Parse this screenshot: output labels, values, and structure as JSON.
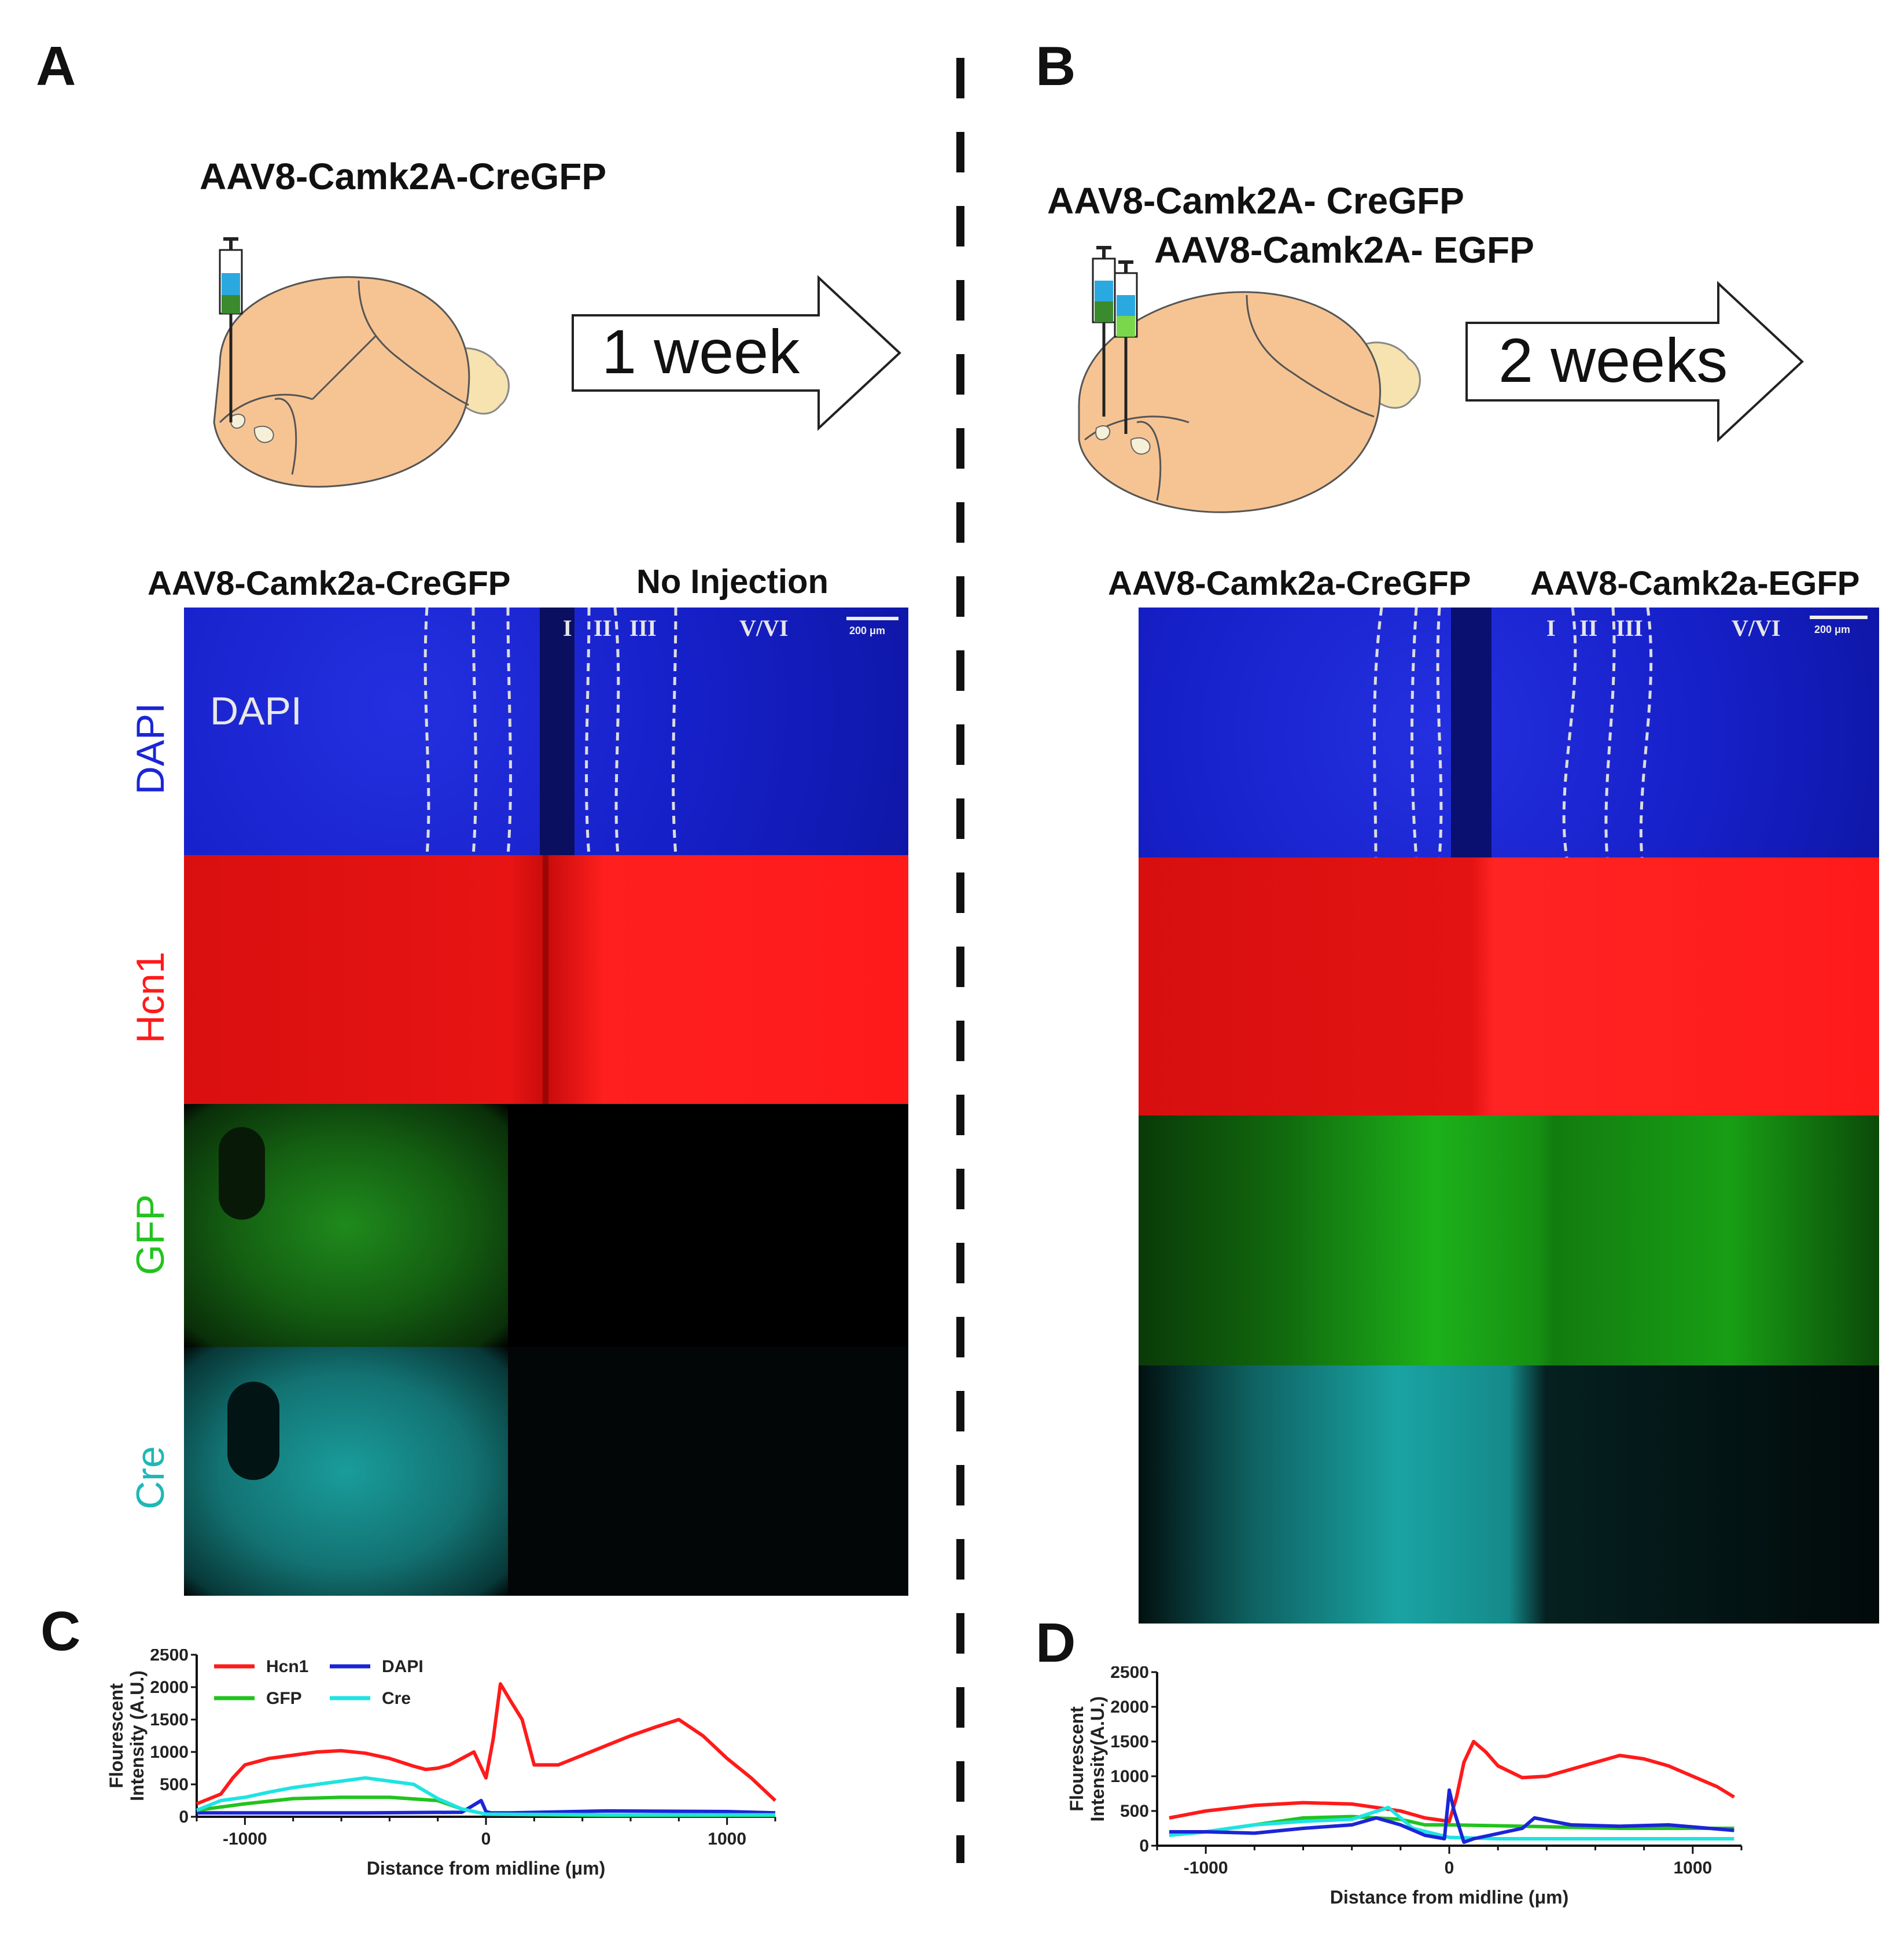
{
  "panelA": {
    "letter": "A",
    "virus": "AAV8-Camk2A-CreGFP",
    "arrow": "1 week",
    "left_col": "AAV8-Camk2a-CreGFP",
    "right_col": "No Injection",
    "rows": [
      "DAPI",
      "Hcn1",
      "GFP",
      "Cre"
    ],
    "dapi_inset": "DAPI",
    "layers": [
      "I",
      "II",
      "III",
      "V/VI"
    ],
    "scale": "200 μm"
  },
  "panelB": {
    "letter": "B",
    "virus1": "AAV8-Camk2A- CreGFP",
    "virus2": "AAV8-Camk2A- EGFP",
    "arrow": "2 weeks",
    "left_col": "AAV8-Camk2a-CreGFP",
    "right_col": "AAV8-Camk2a-EGFP",
    "layers": [
      "I",
      "II",
      "III",
      "V/VI"
    ],
    "scale": "200 μm"
  },
  "colors": {
    "dapi": "#1b25d6",
    "hcn1": "#ff1a1a",
    "gfp": "#22c31e",
    "cre": "#1fb7b7",
    "brain": "#f6c493",
    "syringe_blue": "#2aa9e0",
    "syringe_green": "#3a8a2e"
  },
  "chart_data": [
    {
      "panel": "C",
      "type": "line",
      "ylabel": "Flourescent Intensity (A.U.)",
      "xlabel": "Distance from midline (μm)",
      "xlim": [
        -1200,
        1200
      ],
      "ylim": [
        0,
        2500
      ],
      "xticks": [
        -1000,
        0,
        1000
      ],
      "yticks": [
        0,
        500,
        1000,
        1500,
        2000,
        2500
      ],
      "legend": [
        {
          "name": "Hcn1",
          "color": "#ff1a1a"
        },
        {
          "name": "DAPI",
          "color": "#1b25d6"
        },
        {
          "name": "GFP",
          "color": "#22c31e"
        },
        {
          "name": "Cre",
          "color": "#1fe3e3"
        }
      ],
      "series": [
        {
          "name": "Hcn1",
          "color": "#ff1a1a",
          "x": [
            -1200,
            -1100,
            -1050,
            -1000,
            -900,
            -800,
            -700,
            -600,
            -500,
            -400,
            -300,
            -250,
            -200,
            -150,
            -100,
            -50,
            0,
            30,
            60,
            100,
            150,
            200,
            300,
            400,
            500,
            600,
            700,
            800,
            900,
            1000,
            1100,
            1200
          ],
          "y": [
            200,
            350,
            600,
            800,
            900,
            950,
            1000,
            1020,
            980,
            900,
            780,
            730,
            750,
            800,
            900,
            1000,
            600,
            1200,
            2050,
            1800,
            1500,
            800,
            800,
            950,
            1100,
            1250,
            1380,
            1500,
            1250,
            900,
            600,
            250
          ]
        },
        {
          "name": "DAPI",
          "color": "#1b25d6",
          "x": [
            -1200,
            -1000,
            -500,
            -100,
            -20,
            0,
            20,
            100,
            500,
            1000,
            1200
          ],
          "y": [
            60,
            60,
            60,
            70,
            250,
            80,
            60,
            60,
            90,
            80,
            60
          ]
        },
        {
          "name": "GFP",
          "color": "#22c31e",
          "x": [
            -1200,
            -1000,
            -800,
            -600,
            -400,
            -200,
            -100,
            0,
            500,
            1000,
            1200
          ],
          "y": [
            100,
            200,
            280,
            300,
            300,
            250,
            120,
            40,
            20,
            20,
            20
          ]
        },
        {
          "name": "Cre",
          "color": "#1fe3e3",
          "x": [
            -1200,
            -1100,
            -1000,
            -900,
            -800,
            -700,
            -600,
            -500,
            -400,
            -300,
            -200,
            -100,
            0,
            500,
            1200
          ],
          "y": [
            100,
            250,
            300,
            380,
            450,
            500,
            550,
            600,
            550,
            500,
            280,
            120,
            40,
            30,
            30
          ]
        }
      ]
    },
    {
      "panel": "D",
      "type": "line",
      "ylabel": "Flourescent Intensity(A.U.)",
      "xlabel": "Distance from midline (μm)",
      "xlim": [
        -1200,
        1200
      ],
      "ylim": [
        0,
        2500
      ],
      "xticks": [
        -1000,
        0,
        1000
      ],
      "yticks": [
        0,
        500,
        1000,
        1500,
        2000,
        2500
      ],
      "series": [
        {
          "name": "Hcn1",
          "color": "#ff1a1a",
          "x": [
            -1150,
            -1000,
            -800,
            -600,
            -400,
            -200,
            -100,
            0,
            30,
            60,
            100,
            150,
            200,
            300,
            400,
            500,
            600,
            700,
            800,
            900,
            1000,
            1100,
            1170
          ],
          "y": [
            400,
            500,
            580,
            620,
            600,
            500,
            400,
            350,
            700,
            1200,
            1500,
            1350,
            1150,
            980,
            1000,
            1100,
            1200,
            1300,
            1250,
            1150,
            1000,
            850,
            700
          ]
        },
        {
          "name": "GFP",
          "color": "#22c31e",
          "x": [
            -1150,
            -1000,
            -800,
            -600,
            -400,
            -200,
            -100,
            0,
            300,
            700,
            1170
          ],
          "y": [
            150,
            200,
            300,
            400,
            420,
            380,
            300,
            300,
            280,
            250,
            250
          ]
        },
        {
          "name": "Cre",
          "color": "#1fe3e3",
          "x": [
            -1150,
            -1000,
            -800,
            -600,
            -400,
            -250,
            -150,
            0,
            200,
            600,
            1170
          ],
          "y": [
            150,
            200,
            300,
            350,
            380,
            550,
            250,
            120,
            100,
            100,
            100
          ]
        },
        {
          "name": "DAPI",
          "color": "#1b25d6",
          "x": [
            -1150,
            -1000,
            -800,
            -600,
            -400,
            -300,
            -200,
            -100,
            -20,
            0,
            20,
            60,
            100,
            300,
            350,
            500,
            700,
            900,
            1170
          ],
          "y": [
            200,
            200,
            180,
            250,
            300,
            400,
            300,
            150,
            100,
            800,
            500,
            50,
            100,
            250,
            400,
            300,
            280,
            300,
            220
          ]
        }
      ]
    }
  ]
}
